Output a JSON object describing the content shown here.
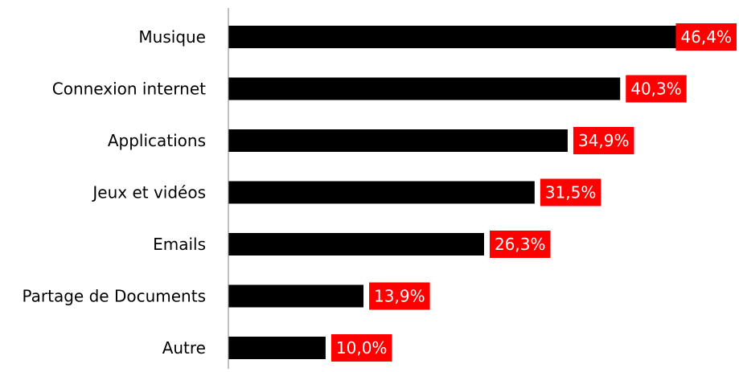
{
  "chart_data": {
    "type": "bar",
    "orientation": "horizontal",
    "categories": [
      "Musique",
      "Connexion internet",
      "Applications",
      "Jeux et vidéos",
      "Emails",
      "Partage de Documents",
      "Autre"
    ],
    "values": [
      46.4,
      40.3,
      34.9,
      31.5,
      26.3,
      13.9,
      10.0
    ],
    "value_labels": [
      "46,4%",
      "40,3%",
      "34,9%",
      "31,5%",
      "26,3%",
      "13,9%",
      "10,0%"
    ],
    "unit": "%",
    "title": "",
    "xlabel": "",
    "ylabel": "",
    "xlim": [
      0,
      50
    ],
    "grid": false,
    "legend": "none",
    "colors": {
      "bar": "#000000",
      "label_background": "#ff0000",
      "label_text": "#ffffff",
      "axis": "#808080",
      "category_text": "#000000"
    }
  }
}
